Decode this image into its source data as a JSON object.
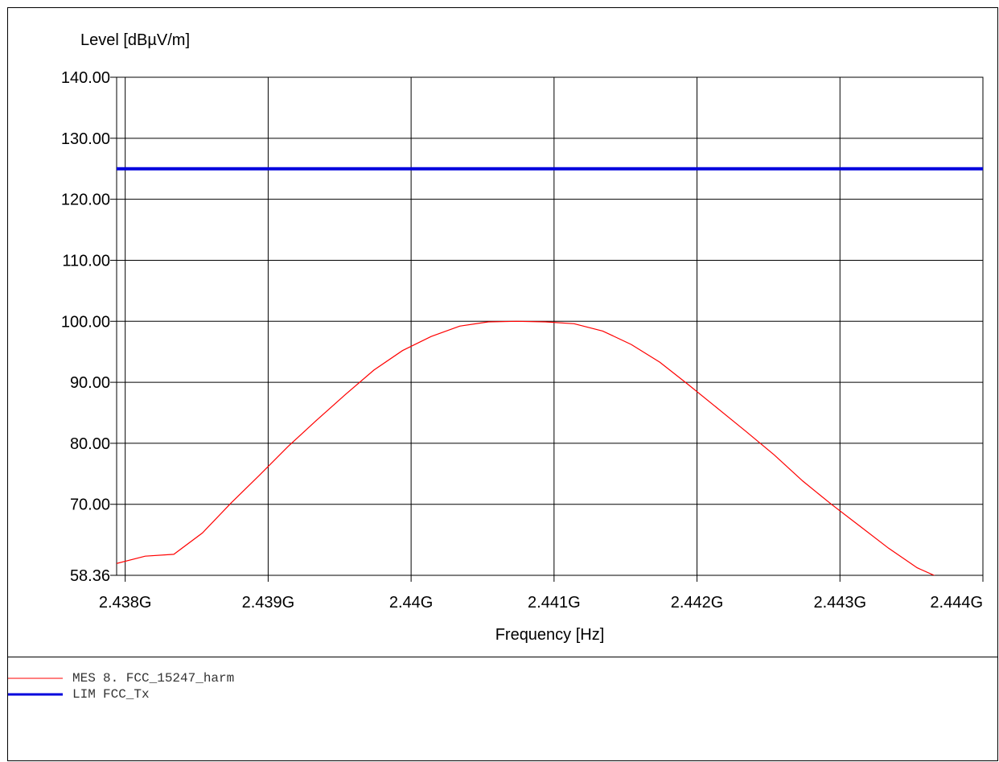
{
  "chart_data": {
    "type": "line",
    "ylabel": "Level [dBµV/m]",
    "xlabel": "Frequency [Hz]",
    "xlim": [
      2437940000,
      2444000000
    ],
    "ylim": [
      58.36,
      140
    ],
    "y_ticks": [
      140,
      130,
      120,
      110,
      100,
      90,
      80,
      70,
      58.36
    ],
    "y_tick_labels": [
      "140.00",
      "130.00",
      "120.00",
      "110.00",
      "100.00",
      "90.00",
      "80.00",
      "70.00",
      "58.36"
    ],
    "x_ticks": [
      2438000000,
      2439000000,
      2440000000,
      2441000000,
      2442000000,
      2443000000,
      2444000000
    ],
    "x_tick_labels": [
      "2.438G",
      "2.439G",
      "2.44G",
      "2.441G",
      "2.442G",
      "2.443G",
      "2.444G"
    ],
    "grid": true,
    "series": [
      {
        "name": "MES",
        "color": "#ff0000",
        "x": [
          2437940000,
          2438140000,
          2438340000,
          2438540000,
          2438740000,
          2438940000,
          2439140000,
          2439340000,
          2439540000,
          2439740000,
          2439940000,
          2440140000,
          2440340000,
          2440540000,
          2440740000,
          2440940000,
          2441140000,
          2441340000,
          2441540000,
          2441740000,
          2441940000,
          2442140000,
          2442340000,
          2442540000,
          2442740000,
          2442940000,
          2443140000,
          2443340000,
          2443540000,
          2443740000,
          2443880000,
          2444000000
        ],
        "values": [
          60.3,
          61.5,
          61.8,
          65.3,
          70.2,
          74.8,
          79.5,
          83.8,
          88.0,
          92.0,
          95.2,
          97.5,
          99.2,
          99.9,
          100.0,
          99.9,
          99.6,
          98.4,
          96.2,
          93.3,
          89.6,
          85.8,
          82.0,
          78.1,
          73.8,
          70.0,
          66.4,
          62.8,
          59.6,
          57.5,
          55.5,
          56.0
        ]
      },
      {
        "name": "LIM",
        "color": "#0000dd",
        "x": [
          2437940000,
          2444000000
        ],
        "values": [
          125.0,
          125.0
        ]
      }
    ]
  },
  "legend": [
    {
      "kind": "MES",
      "label": "8. FCC_15247_harm",
      "color": "#ff0000",
      "thickness": 1
    },
    {
      "kind": "LIM",
      "label": "FCC_Tx",
      "color": "#0000dd",
      "thickness": 3
    }
  ]
}
